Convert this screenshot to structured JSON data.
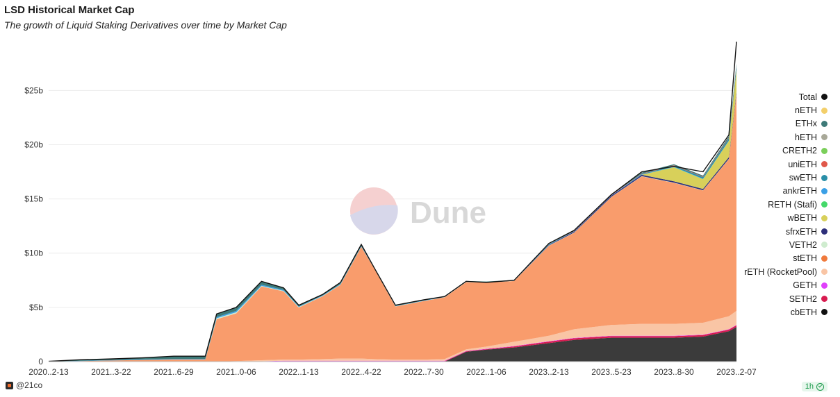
{
  "header": {
    "title": "LSD Historical Market Cap",
    "subtitle": "The growth of Liquid Staking Derivatives over time by Market Cap"
  },
  "watermark": {
    "text": "Dune"
  },
  "footer": {
    "author": "@21co",
    "refresh": "1h"
  },
  "chart_data": {
    "type": "area",
    "title": "LSD Historical Market Cap",
    "subtitle": "The growth of Liquid Staking Derivatives over time by Market Cap",
    "stacked": true,
    "legend_position": "right",
    "grid": true,
    "y_ticks": [
      "0",
      "$5b",
      "$10b",
      "$15b",
      "$20b",
      "$25b"
    ],
    "y_tick_values": [
      0,
      5,
      10,
      15,
      20,
      25
    ],
    "ylim": [
      0,
      29.5
    ],
    "x_ticks": [
      "2020..2-13",
      "2021..3-22",
      "2021..6-29",
      "2021..0-06",
      "2022..1-13",
      "2022..4-22",
      "2022..7-30",
      "2022..1-06",
      "2023..2-13",
      "2023..5-23",
      "2023..8-30",
      "2023..2-07"
    ],
    "x": [
      "2020-12-13",
      "2021-02-01",
      "2021-03-22",
      "2021-05-10",
      "2021-06-29",
      "2021-08-18",
      "2021-09-05",
      "2021-10-06",
      "2021-11-15",
      "2021-12-20",
      "2022-01-13",
      "2022-02-20",
      "2022-03-20",
      "2022-04-22",
      "2022-05-12",
      "2022-06-15",
      "2022-07-30",
      "2022-09-01",
      "2022-10-05",
      "2022-11-06",
      "2022-12-20",
      "2023-02-13",
      "2023-03-25",
      "2023-05-23",
      "2023-07-10",
      "2023-08-30",
      "2023-10-15",
      "2023-11-25",
      "2023-12-07"
    ],
    "series": [
      {
        "name": "cbETH",
        "color": "#3b3b3b",
        "values": [
          0,
          0,
          0,
          0,
          0,
          0,
          0,
          0,
          0,
          0,
          0,
          0,
          0,
          0,
          0,
          0,
          0,
          0,
          0.9,
          1.1,
          1.3,
          1.7,
          2.0,
          2.2,
          2.2,
          2.2,
          2.3,
          2.8,
          3.2
        ]
      },
      {
        "name": "SETH2",
        "color": "#d81b50",
        "values": [
          0,
          0,
          0,
          0,
          0,
          0,
          0,
          0,
          0,
          0.05,
          0.05,
          0.05,
          0.05,
          0.05,
          0.05,
          0.05,
          0.05,
          0.05,
          0.05,
          0.05,
          0.1,
          0.15,
          0.15,
          0.15,
          0.15,
          0.15,
          0.15,
          0.15,
          0.15
        ]
      },
      {
        "name": "GETH",
        "color": "#e040fb",
        "values": [
          0,
          0,
          0,
          0,
          0,
          0,
          0,
          0,
          0.03,
          0.03,
          0.03,
          0.03,
          0.03,
          0.03,
          0.03,
          0.03,
          0.03,
          0.03,
          0.03,
          0.03,
          0.03,
          0.03,
          0.03,
          0.03,
          0.03,
          0.03,
          0.03,
          0.03,
          0.03
        ]
      },
      {
        "name": "rETH (RocketPool)",
        "color": "#f9c5a5",
        "values": [
          0,
          0,
          0,
          0,
          0,
          0,
          0,
          0.05,
          0.1,
          0.1,
          0.1,
          0.15,
          0.2,
          0.2,
          0.15,
          0.1,
          0.1,
          0.15,
          0.15,
          0.2,
          0.4,
          0.5,
          0.8,
          1.0,
          1.1,
          1.1,
          1.1,
          1.2,
          1.3
        ]
      },
      {
        "name": "stETH",
        "color": "#f99c6c",
        "values": [
          0,
          0.05,
          0.1,
          0.15,
          0.2,
          0.2,
          3.9,
          4.4,
          6.8,
          6.3,
          4.8,
          5.8,
          6.8,
          10.3,
          8.4,
          4.9,
          5.4,
          5.7,
          6.2,
          5.9,
          5.6,
          8.3,
          8.9,
          11.8,
          13.6,
          13.0,
          12.2,
          14.5,
          20.0
        ]
      },
      {
        "name": "VETH2",
        "color": "#cfeccf",
        "values": [
          0,
          0,
          0,
          0,
          0,
          0,
          0.1,
          0.1,
          0.05,
          0.05,
          0.05,
          0.03,
          0.02,
          0.02,
          0.02,
          0.02,
          0.02,
          0.02,
          0.02,
          0.02,
          0.02,
          0.02,
          0.02,
          0.02,
          0.02,
          0.02,
          0.02,
          0.02,
          0.02
        ]
      },
      {
        "name": "sfrxETH",
        "color": "#2d2f7a",
        "values": [
          0,
          0,
          0,
          0,
          0,
          0,
          0,
          0,
          0,
          0,
          0,
          0,
          0,
          0,
          0,
          0,
          0,
          0,
          0,
          0,
          0,
          0.05,
          0.08,
          0.1,
          0.12,
          0.12,
          0.12,
          0.15,
          0.18
        ]
      },
      {
        "name": "wBETH",
        "color": "#d8d05a",
        "values": [
          0,
          0,
          0,
          0,
          0,
          0,
          0,
          0,
          0,
          0,
          0,
          0,
          0,
          0,
          0,
          0,
          0,
          0,
          0,
          0,
          0,
          0,
          0,
          0,
          0,
          1.3,
          0.9,
          1.5,
          2.0
        ]
      },
      {
        "name": "RETH (Stafi)",
        "color": "#45d96a",
        "values": [
          0,
          0,
          0,
          0,
          0,
          0,
          0,
          0,
          0,
          0,
          0,
          0,
          0,
          0,
          0,
          0,
          0,
          0,
          0,
          0,
          0,
          0,
          0,
          0,
          0,
          0.01,
          0.01,
          0.01,
          0.01
        ]
      },
      {
        "name": "ankrETH",
        "color": "#3aa0e6",
        "values": [
          0,
          0.02,
          0.03,
          0.05,
          0.05,
          0.05,
          0.1,
          0.12,
          0.1,
          0.08,
          0.05,
          0.05,
          0.05,
          0.05,
          0.04,
          0.03,
          0.03,
          0.03,
          0.03,
          0.03,
          0.03,
          0.03,
          0.03,
          0.03,
          0.03,
          0.03,
          0.03,
          0.03,
          0.03
        ]
      },
      {
        "name": "swETH",
        "color": "#2a8fa8",
        "values": [
          0,
          0,
          0,
          0,
          0,
          0,
          0,
          0,
          0,
          0,
          0,
          0,
          0,
          0,
          0,
          0,
          0,
          0,
          0,
          0,
          0,
          0,
          0,
          0,
          0.05,
          0.1,
          0.15,
          0.2,
          0.3
        ]
      },
      {
        "name": "uniETH",
        "color": "#e0584a",
        "values": [
          0,
          0,
          0,
          0,
          0,
          0,
          0,
          0,
          0,
          0,
          0,
          0,
          0,
          0,
          0,
          0,
          0,
          0,
          0,
          0,
          0,
          0,
          0.02,
          0.03,
          0.03,
          0.04,
          0.04,
          0.05,
          0.05
        ]
      },
      {
        "name": "CRETH2",
        "color": "#7bcf5a",
        "values": [
          0,
          0,
          0,
          0,
          0,
          0,
          0,
          0,
          0,
          0,
          0,
          0,
          0,
          0,
          0,
          0,
          0,
          0,
          0,
          0,
          0,
          0,
          0,
          0,
          0,
          0,
          0,
          0,
          0
        ]
      },
      {
        "name": "hETH",
        "color": "#a8a898",
        "values": [
          0,
          0,
          0,
          0,
          0,
          0,
          0,
          0,
          0,
          0,
          0,
          0,
          0,
          0,
          0,
          0,
          0,
          0,
          0,
          0,
          0,
          0,
          0,
          0,
          0,
          0,
          0,
          0,
          0
        ]
      },
      {
        "name": "ETHx",
        "color": "#3e7a78",
        "values": [
          0.03,
          0.1,
          0.12,
          0.15,
          0.25,
          0.25,
          0.3,
          0.35,
          0.3,
          0.2,
          0.1,
          0.1,
          0.1,
          0.1,
          0.05,
          0.05,
          0.05,
          0.05,
          0.05,
          0.05,
          0.05,
          0.05,
          0.05,
          0.05,
          0.1,
          0.1,
          0.1,
          0.15,
          0.2
        ]
      },
      {
        "name": "nETH",
        "color": "#f3cf6a",
        "values": [
          0,
          0,
          0,
          0,
          0,
          0,
          0,
          0,
          0,
          0,
          0,
          0,
          0,
          0,
          0,
          0,
          0,
          0,
          0,
          0,
          0,
          0,
          0,
          0,
          0,
          0,
          0,
          0,
          0
        ]
      },
      {
        "name": "Total",
        "color": "#111111",
        "values": [
          0.03,
          0.17,
          0.25,
          0.35,
          0.5,
          0.5,
          4.4,
          5.0,
          7.4,
          6.8,
          5.2,
          6.2,
          7.3,
          10.8,
          8.7,
          5.2,
          5.7,
          6.0,
          7.4,
          7.3,
          7.5,
          10.9,
          12.1,
          15.4,
          17.5,
          18.0,
          17.5,
          20.9,
          29.5
        ]
      }
    ]
  },
  "legend": {
    "items": [
      {
        "label": "Total",
        "color": "#111111"
      },
      {
        "label": "nETH",
        "color": "#f3cf6a"
      },
      {
        "label": "ETHx",
        "color": "#3e7a78"
      },
      {
        "label": "hETH",
        "color": "#a8a898"
      },
      {
        "label": "CRETH2",
        "color": "#7bcf5a"
      },
      {
        "label": "uniETH",
        "color": "#e0584a"
      },
      {
        "label": "swETH",
        "color": "#2a8fa8"
      },
      {
        "label": "ankrETH",
        "color": "#3aa0e6"
      },
      {
        "label": "RETH (Stafi)",
        "color": "#45d96a"
      },
      {
        "label": "wBETH",
        "color": "#d8d05a"
      },
      {
        "label": "sfrxETH",
        "color": "#2d2f7a"
      },
      {
        "label": "VETH2",
        "color": "#cfeccf"
      },
      {
        "label": "stETH",
        "color": "#f07a3c"
      },
      {
        "label": "rETH (RocketPool)",
        "color": "#f9c5a5"
      },
      {
        "label": "GETH",
        "color": "#e040fb"
      },
      {
        "label": "SETH2",
        "color": "#d81b50"
      },
      {
        "label": "cbETH",
        "color": "#111111"
      }
    ]
  }
}
